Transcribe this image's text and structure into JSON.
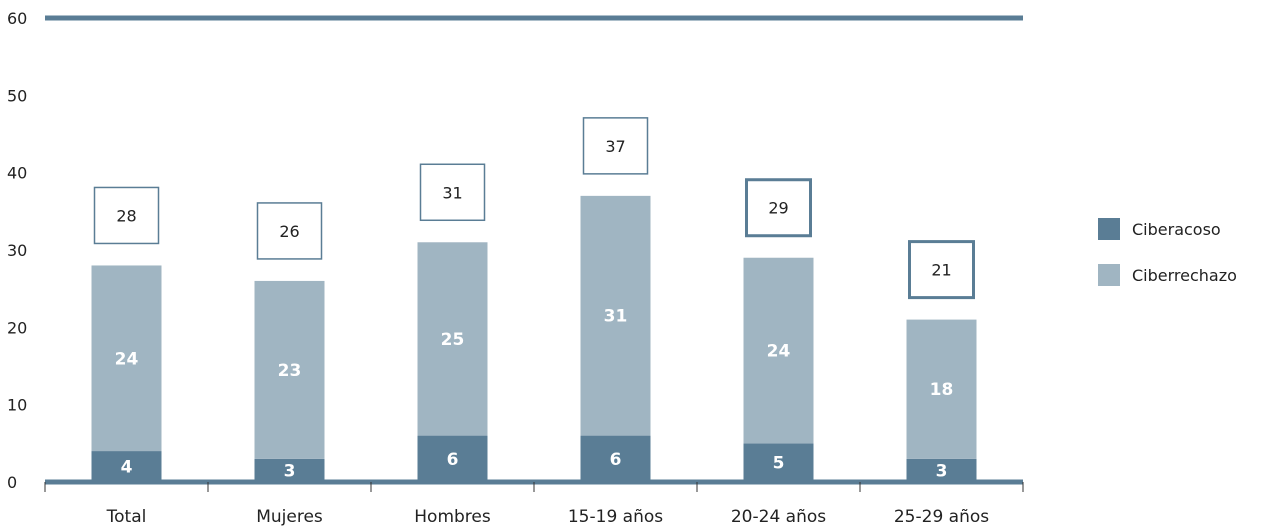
{
  "chart_data": {
    "type": "bar",
    "stacked": true,
    "categories": [
      "Total",
      "Mujeres",
      "Hombres",
      "15-19 años",
      "20-24 años",
      "25-29 años"
    ],
    "series": [
      {
        "name": "Ciberacoso",
        "values": [
          4,
          3,
          6,
          6,
          5,
          3
        ],
        "color": "#5a7d95"
      },
      {
        "name": "Ciberrechazo",
        "values": [
          24,
          23,
          25,
          31,
          24,
          18
        ],
        "color": "#a0b5c2"
      }
    ],
    "totals": [
      28,
      26,
      31,
      37,
      29,
      21
    ],
    "ylim": [
      0,
      60
    ],
    "yticks": [
      0,
      10,
      20,
      30,
      40,
      50,
      60
    ],
    "legend_position": "right",
    "axis_color": "#5a7d95",
    "box_border_color": "#5a7d95"
  }
}
